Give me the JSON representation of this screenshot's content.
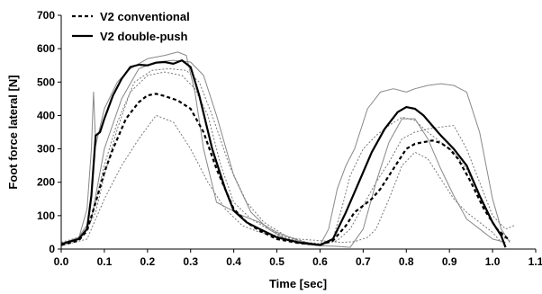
{
  "chart_data": {
    "type": "line",
    "title": "",
    "xlabel": "Time [sec]",
    "ylabel": "Foot force lateral [N]",
    "xlim": [
      0.0,
      1.1
    ],
    "ylim": [
      0,
      700
    ],
    "x_ticks": [
      "0.0",
      "0.1",
      "0.2",
      "0.3",
      "0.4",
      "0.5",
      "0.6",
      "0.7",
      "0.8",
      "0.9",
      "1.0",
      "1.1"
    ],
    "y_ticks": [
      "0",
      "100",
      "200",
      "300",
      "400",
      "500",
      "600",
      "700"
    ],
    "grid": false,
    "legend_position": "top-left",
    "legend": [
      {
        "label": "V2 conventional",
        "style": "dashed",
        "color": "#000000"
      },
      {
        "label": "V2 double-push",
        "style": "solid",
        "color": "#000000"
      }
    ],
    "series": [
      {
        "name": "V2 conventional",
        "role": "mean",
        "style": "dashed",
        "color": "#000000",
        "x": [
          0.0,
          0.04,
          0.06,
          0.08,
          0.1,
          0.12,
          0.15,
          0.18,
          0.2,
          0.22,
          0.24,
          0.27,
          0.3,
          0.33,
          0.36,
          0.4,
          0.43,
          0.46,
          0.5,
          0.55,
          0.6,
          0.63,
          0.66,
          0.68,
          0.7,
          0.72,
          0.74,
          0.76,
          0.78,
          0.8,
          0.82,
          0.84,
          0.86,
          0.88,
          0.9,
          0.92,
          0.95,
          0.98,
          1.01,
          1.04
        ],
        "y": [
          12,
          25,
          55,
          140,
          230,
          300,
          390,
          440,
          460,
          465,
          458,
          445,
          420,
          350,
          240,
          120,
          80,
          55,
          30,
          18,
          12,
          25,
          70,
          110,
          130,
          150,
          180,
          220,
          260,
          300,
          315,
          320,
          325,
          318,
          300,
          270,
          200,
          120,
          60,
          25
        ]
      },
      {
        "name": "V2 double-push",
        "role": "mean",
        "style": "solid",
        "color": "#000000",
        "x": [
          0.0,
          0.04,
          0.06,
          0.07,
          0.08,
          0.09,
          0.1,
          0.12,
          0.14,
          0.16,
          0.18,
          0.2,
          0.22,
          0.24,
          0.26,
          0.28,
          0.3,
          0.32,
          0.35,
          0.38,
          0.4,
          0.43,
          0.46,
          0.5,
          0.55,
          0.6,
          0.63,
          0.66,
          0.69,
          0.72,
          0.75,
          0.78,
          0.8,
          0.82,
          0.84,
          0.86,
          0.88,
          0.91,
          0.94,
          0.97,
          1.0,
          1.02,
          1.03
        ],
        "y": [
          15,
          30,
          60,
          160,
          340,
          350,
          390,
          460,
          510,
          545,
          552,
          550,
          558,
          560,
          555,
          565,
          545,
          460,
          300,
          180,
          115,
          80,
          60,
          35,
          20,
          12,
          30,
          110,
          200,
          290,
          360,
          410,
          425,
          420,
          400,
          370,
          340,
          300,
          250,
          160,
          80,
          40,
          5
        ]
      },
      {
        "name": "V2 conventional",
        "role": "individual",
        "style": "dotted",
        "color": "#777777",
        "x": [
          0.0,
          0.05,
          0.08,
          0.1,
          0.13,
          0.16,
          0.2,
          0.24,
          0.28,
          0.31,
          0.34,
          0.37,
          0.4,
          0.44,
          0.48,
          0.52,
          0.56,
          0.6,
          0.63,
          0.65,
          0.67,
          0.7,
          0.73,
          0.76,
          0.79,
          0.82,
          0.85,
          0.88,
          0.91,
          0.94,
          0.97,
          1.0,
          1.03
        ],
        "y": [
          15,
          40,
          110,
          220,
          360,
          470,
          520,
          530,
          520,
          480,
          400,
          250,
          140,
          90,
          60,
          35,
          20,
          10,
          30,
          120,
          220,
          300,
          340,
          370,
          395,
          385,
          350,
          320,
          290,
          240,
          160,
          80,
          30
        ]
      },
      {
        "name": "V2 conventional",
        "role": "individual",
        "style": "dotted",
        "color": "#777777",
        "x": [
          0.0,
          0.06,
          0.1,
          0.14,
          0.18,
          0.22,
          0.26,
          0.3,
          0.34,
          0.38,
          0.42,
          0.46,
          0.5,
          0.55,
          0.6,
          0.65,
          0.68,
          0.71,
          0.73,
          0.76,
          0.79,
          0.82,
          0.85,
          0.88,
          0.91,
          0.94,
          0.97,
          1.0,
          1.02
        ],
        "y": [
          10,
          30,
          150,
          250,
          330,
          400,
          380,
          300,
          200,
          120,
          70,
          50,
          40,
          30,
          25,
          20,
          22,
          35,
          60,
          150,
          250,
          290,
          270,
          210,
          150,
          110,
          80,
          50,
          20
        ]
      },
      {
        "name": "V2 conventional",
        "role": "individual",
        "style": "dotted",
        "color": "#777777",
        "x": [
          0.0,
          0.04,
          0.07,
          0.1,
          0.13,
          0.17,
          0.21,
          0.25,
          0.29,
          0.32,
          0.35,
          0.39,
          0.43,
          0.47,
          0.52,
          0.57,
          0.61,
          0.64,
          0.67,
          0.7,
          0.73,
          0.76,
          0.79,
          0.82,
          0.85,
          0.88,
          0.91,
          0.94,
          0.97,
          1.0,
          1.03,
          1.05
        ],
        "y": [
          20,
          35,
          90,
          250,
          380,
          500,
          535,
          540,
          535,
          500,
          400,
          250,
          140,
          80,
          40,
          20,
          15,
          25,
          60,
          130,
          200,
          260,
          330,
          350,
          360,
          365,
          370,
          300,
          200,
          100,
          60,
          70
        ]
      },
      {
        "name": "V2 double-push",
        "role": "individual",
        "style": "solid",
        "color": "#888888",
        "x": [
          0.0,
          0.04,
          0.06,
          0.07,
          0.075,
          0.08,
          0.1,
          0.13,
          0.16,
          0.2,
          0.24,
          0.27,
          0.29,
          0.31,
          0.33,
          0.36,
          0.39,
          0.42,
          0.46,
          0.5,
          0.55,
          0.6,
          0.62,
          0.64,
          0.66,
          0.68,
          0.71,
          0.74,
          0.77,
          0.8,
          0.82,
          0.85,
          0.88,
          0.91,
          0.94,
          0.97,
          1.0,
          1.02,
          1.04
        ],
        "y": [
          12,
          30,
          120,
          300,
          470,
          310,
          420,
          500,
          540,
          570,
          580,
          590,
          580,
          470,
          300,
          140,
          120,
          100,
          80,
          50,
          25,
          12,
          60,
          180,
          250,
          300,
          420,
          470,
          480,
          470,
          480,
          490,
          495,
          490,
          470,
          350,
          150,
          60,
          20
        ]
      },
      {
        "name": "V2 double-push",
        "role": "individual",
        "style": "solid",
        "color": "#888888",
        "x": [
          0.0,
          0.04,
          0.07,
          0.1,
          0.14,
          0.18,
          0.22,
          0.26,
          0.3,
          0.33,
          0.36,
          0.4,
          0.44,
          0.48,
          0.52,
          0.56,
          0.6,
          0.64,
          0.67,
          0.7,
          0.73,
          0.76,
          0.79,
          0.82,
          0.85,
          0.88,
          0.91,
          0.94,
          0.97,
          1.0,
          1.03
        ],
        "y": [
          15,
          35,
          90,
          300,
          450,
          540,
          560,
          565,
          560,
          520,
          400,
          220,
          110,
          60,
          30,
          15,
          10,
          8,
          5,
          60,
          200,
          320,
          390,
          390,
          330,
          240,
          160,
          90,
          60,
          30,
          20
        ]
      }
    ]
  }
}
